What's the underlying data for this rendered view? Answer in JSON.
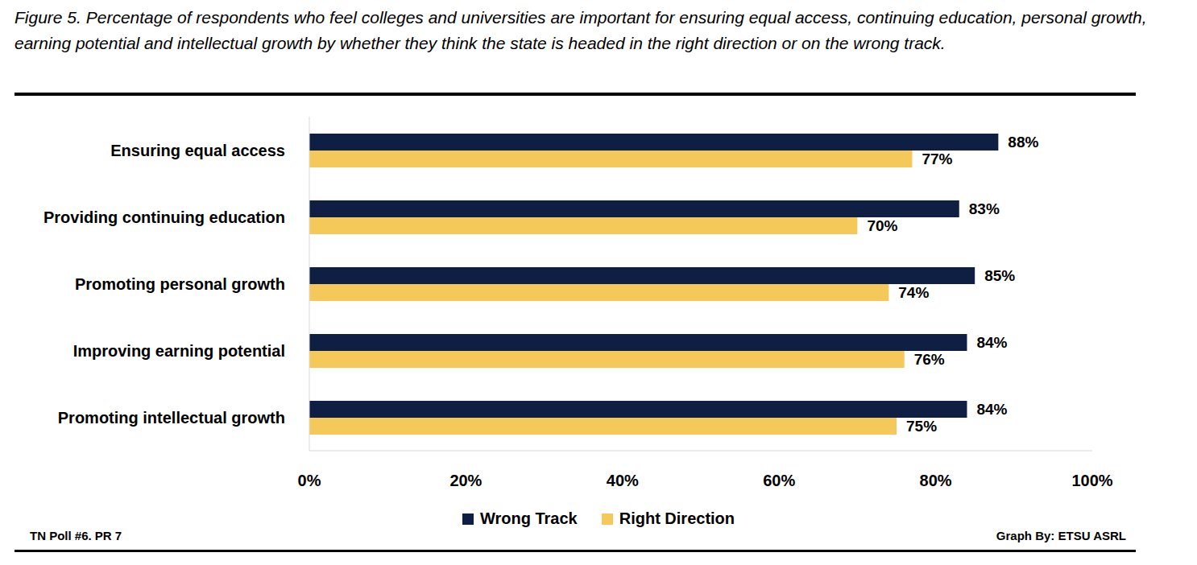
{
  "chart_data": {
    "type": "bar",
    "orientation": "horizontal",
    "title": "Figure 5. Percentage of respondents who feel colleges and universities are important for ensuring equal access, continuing education, personal growth, earning potential and intellectual growth by whether they think the state is headed in the right direction or on the wrong track.",
    "categories": [
      "Ensuring equal access",
      "Providing continuing education",
      "Promoting personal growth",
      "Improving earning potential",
      "Promoting intellectual growth"
    ],
    "series": [
      {
        "name": "Wrong Track",
        "color": "#0e1f43",
        "values": [
          88,
          83,
          85,
          84,
          84
        ],
        "value_labels": [
          "88%",
          "83%",
          "85%",
          "84%",
          "84%"
        ]
      },
      {
        "name": "Right Direction",
        "color": "#f5c85a",
        "values": [
          77,
          70,
          74,
          76,
          75
        ],
        "value_labels": [
          "77%",
          "70%",
          "74%",
          "76%",
          "75%"
        ]
      }
    ],
    "xlim": [
      0,
      100
    ],
    "xticks": [
      {
        "value": 0,
        "label": "0%"
      },
      {
        "value": 20,
        "label": "20%"
      },
      {
        "value": 40,
        "label": "40%"
      },
      {
        "value": 60,
        "label": "60%"
      },
      {
        "value": 80,
        "label": "80%"
      },
      {
        "value": 100,
        "label": "100%"
      }
    ],
    "grid": false,
    "legend": "bottom",
    "data_labels": true,
    "annotations": [
      "TN Poll #6. PR 7",
      "Graph By: ETSU ASRL"
    ]
  }
}
